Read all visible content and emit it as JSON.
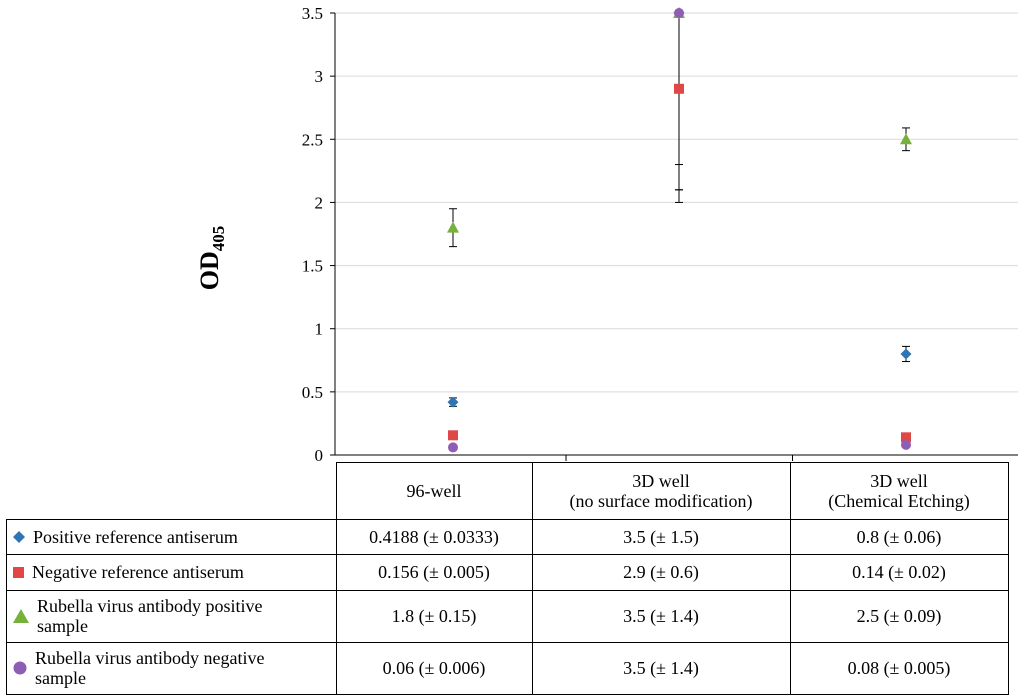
{
  "chart_data": {
    "type": "scatter",
    "title": "",
    "ylabel": "OD",
    "ylabel_subscript": "405",
    "xlabel": "",
    "ylim": [
      0,
      3.5
    ],
    "yticks": [
      "0",
      "0.5",
      "1",
      "1.5",
      "2",
      "2.5",
      "3",
      "3.5"
    ],
    "ytick_values": [
      0,
      0.5,
      1,
      1.5,
      2,
      2.5,
      3,
      3.5
    ],
    "categories": [
      "96-well",
      "3D well (no surface modification)",
      "3D well (Chemical Etching)"
    ],
    "series": [
      {
        "name": "Positive reference antiserum",
        "marker": "diamond",
        "color": "#2E75B6",
        "values": [
          0.4188,
          3.5,
          0.8
        ],
        "errors": [
          0.0333,
          1.5,
          0.06
        ]
      },
      {
        "name": "Negative reference antiserum",
        "marker": "square",
        "color": "#E04848",
        "values": [
          0.156,
          2.9,
          0.14
        ],
        "errors": [
          0.005,
          0.6,
          0.02
        ]
      },
      {
        "name": "Rubella virus antibody positive sample",
        "marker": "triangle",
        "color": "#77B03A",
        "values": [
          1.8,
          3.5,
          2.5
        ],
        "errors": [
          0.15,
          1.4,
          0.09
        ]
      },
      {
        "name": "Rubella virus antibody negative sample",
        "marker": "circle",
        "color": "#8E5DB4",
        "values": [
          0.06,
          3.5,
          0.08
        ],
        "errors": [
          0.006,
          1.4,
          0.005
        ]
      }
    ]
  },
  "table": {
    "headers": [
      {
        "line1": "96-well",
        "line2": ""
      },
      {
        "line1": "3D well",
        "line2": "(no surface modification)"
      },
      {
        "line1": "3D well",
        "line2": "(Chemical Etching)"
      }
    ],
    "rows": [
      {
        "label": "Positive reference antiserum",
        "cells": [
          "0.4188 (± 0.0333)",
          "3.5 (± 1.5)",
          "0.8 (± 0.06)"
        ]
      },
      {
        "label": "Negative reference antiserum",
        "cells": [
          "0.156 (± 0.005)",
          "2.9 (± 0.6)",
          "0.14 (± 0.02)"
        ]
      },
      {
        "label": "Rubella virus antibody positive sample",
        "cells": [
          "1.8 (± 0.15)",
          "3.5 (± 1.4)",
          "2.5 (± 0.09)"
        ]
      },
      {
        "label": "Rubella virus antibody negative sample",
        "cells": [
          "0.06 (± 0.006)",
          "3.5 (± 1.4)",
          "0.08 (± 0.005)"
        ]
      }
    ]
  }
}
